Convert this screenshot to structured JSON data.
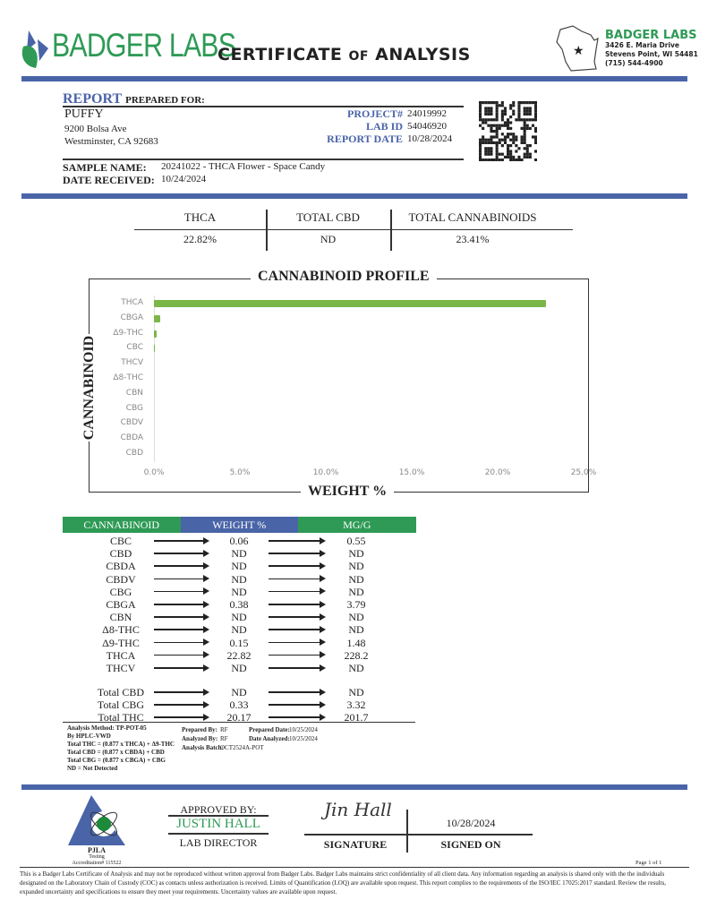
{
  "header": {
    "brand": "BADGER LABS",
    "title_part1": "CERTIFICATE",
    "title_of": "OF",
    "title_part2": "ANALYSIS",
    "lab_name": "BADGER LABS",
    "address1": "3426 E. Maria Drive",
    "address2": "Stevens Point, WI 54481",
    "phone": "(715) 544-4900"
  },
  "report": {
    "report_word": "REPORT",
    "prepared_for": "PREPARED FOR:",
    "client": "PUFFY",
    "street": "9200 Bolsa Ave",
    "city": "Westminster, CA 92683",
    "project_label": "PROJECT#",
    "project": "24019992",
    "labid_label": "LAB ID",
    "labid": "54046920",
    "date_label": "REPORT DATE",
    "date": "10/28/2024",
    "sample_label": "SAMPLE NAME:",
    "sample": "20241022 - THCA Flower - Space Candy",
    "received_label": "DATE RECEIVED:",
    "received": "10/24/2024"
  },
  "summary": {
    "headers": [
      "THCA",
      "TOTAL CBD",
      "TOTAL CANNABINOIDS"
    ],
    "values": [
      "22.82%",
      "ND",
      "23.41%"
    ]
  },
  "chart_data": {
    "type": "bar",
    "orientation": "horizontal",
    "title": "CANNABINOID PROFILE",
    "xlabel": "WEIGHT %",
    "ylabel": "CANNABINOID",
    "categories": [
      "THCA",
      "CBGA",
      "Δ9-THC",
      "CBC",
      "THCV",
      "Δ8-THC",
      "CBN",
      "CBG",
      "CBDV",
      "CBDA",
      "CBD"
    ],
    "values": [
      22.82,
      0.38,
      0.15,
      0.06,
      0,
      0,
      0,
      0,
      0,
      0,
      0
    ],
    "xlim": [
      0,
      25
    ],
    "xticks": [
      "0.0%",
      "5.0%",
      "10.0%",
      "15.0%",
      "20.0%",
      "25.0%"
    ],
    "grid": false,
    "bar_color": "#7ab648"
  },
  "results": {
    "headers": [
      "CANNABINOID",
      "WEIGHT %",
      "MG/G"
    ],
    "header_colors": [
      "#2e9a55",
      "#4a64a8",
      "#2e9a55"
    ],
    "rows": [
      [
        "CBC",
        "0.06",
        "0.55"
      ],
      [
        "CBD",
        "ND",
        "ND"
      ],
      [
        "CBDA",
        "ND",
        "ND"
      ],
      [
        "CBDV",
        "ND",
        "ND"
      ],
      [
        "CBG",
        "ND",
        "ND"
      ],
      [
        "CBGA",
        "0.38",
        "3.79"
      ],
      [
        "CBN",
        "ND",
        "ND"
      ],
      [
        "Δ8-THC",
        "ND",
        "ND"
      ],
      [
        "Δ9-THC",
        "0.15",
        "1.48"
      ],
      [
        "THCA",
        "22.82",
        "228.2"
      ],
      [
        "THCV",
        "ND",
        "ND"
      ]
    ],
    "totals": [
      [
        "Total CBD",
        "ND",
        "ND"
      ],
      [
        "Total CBG",
        "0.33",
        "3.32"
      ],
      [
        "Total THC",
        "20.17",
        "201.7"
      ]
    ]
  },
  "notes": {
    "lines": [
      "Analysis Method: TP-POT-05",
      "By HPLC-VWD",
      "Total THC = (0.877 x  THCA) + Δ9-THC",
      "Total CBD = (0.877 x  CBDA) + CBD",
      "Total CBG = (0.877 x  CBGA) + CBG",
      "ND = Not Detected"
    ],
    "prepared_by_label": "Prepared By:",
    "prepared_by": "RF",
    "analyzed_by_label": "Analyzed By:",
    "analyzed_by": "RF",
    "batch_label": "Analysis Batch:",
    "batch": "OCT2524A-POT",
    "prepared_date_label": "Prepared Date:",
    "prepared_date": "10/25/2024",
    "analyzed_date_label": "Date Analyzed:",
    "analyzed_date": "10/25/2024"
  },
  "approval": {
    "pjla": "PJLA",
    "testing": "Testing",
    "accreditation": "Accreditation# 115522",
    "approved_by": "APPROVED BY:",
    "name": "JUSTIN HALL",
    "role": "LAB DIRECTOR",
    "signature_label": "SIGNATURE",
    "signed_date": "10/28/2024",
    "signed_on_label": "SIGNED ON",
    "signature_text": "Jin Hall"
  },
  "footer": {
    "page": "Page 1 of 1",
    "disclaimer": "This is a Badger Labs Certificate of Analysis and may not be reproduced without written approval from Badger Labs. Badger Labs maintains strict confidentiality of all client data. Any information regarding an analysis is shared only with the the individuals designated on the Laboratory Chain of Custody (COC) as contacts unless authorization is received. Limits of Quantification (LOQ) are available upon request. This report complies to the requirements of the ISO/IEC 17025:2017 standard. Review the results, expanded uncertainty and specifications to ensure they meet your requirements. Uncertainty values are available upon request."
  }
}
